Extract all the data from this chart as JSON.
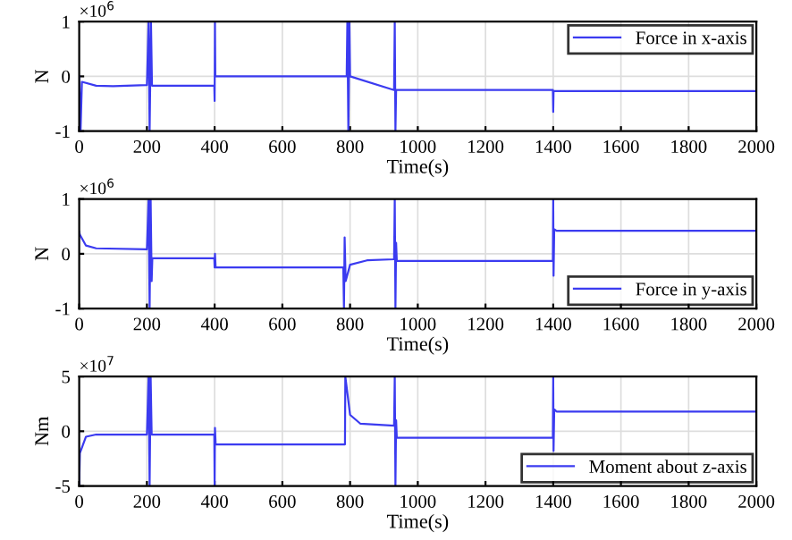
{
  "chart_data": [
    {
      "type": "line",
      "xlabel": "Time(s)",
      "ylabel": "N",
      "annotations": [
        "×10$^{6}$"
      ],
      "xlim": [
        0,
        2000
      ],
      "xticks": [
        0,
        200,
        400,
        600,
        800,
        1000,
        1200,
        1400,
        1600,
        1800,
        2000
      ],
      "ylim": [
        -1,
        1
      ],
      "yticks": [
        -1,
        0,
        1
      ],
      "grid": true,
      "legend": "top right",
      "series": [
        {
          "name": "Force in x-axis",
          "color": "#3b3bf0",
          "x": [
            0,
            4,
            8,
            50,
            100,
            200,
            205,
            208,
            212,
            215,
            399,
            400,
            401,
            402,
            790,
            792,
            795,
            798,
            800,
            930,
            932,
            934,
            936,
            1399,
            1400,
            1401,
            2000
          ],
          "values": [
            0,
            -1,
            -0.1,
            -0.17,
            -0.18,
            -0.16,
            1,
            -1,
            1,
            -0.17,
            -0.17,
            -0.45,
            1,
            0,
            0,
            1,
            -1,
            1,
            0,
            -0.25,
            1,
            -1,
            -0.25,
            -0.25,
            -0.65,
            -0.27,
            -0.27
          ]
        }
      ]
    },
    {
      "type": "line",
      "xlabel": "Time(s)",
      "ylabel": "N",
      "annotations": [
        "×10$^{6}$"
      ],
      "xlim": [
        0,
        2000
      ],
      "xticks": [
        0,
        200,
        400,
        600,
        800,
        1000,
        1200,
        1400,
        1600,
        1800,
        2000
      ],
      "ylim": [
        -1,
        1
      ],
      "yticks": [
        -1,
        0,
        1
      ],
      "grid": true,
      "legend": "bottom right",
      "series": [
        {
          "name": "Force in y-axis",
          "color": "#3b3bf0",
          "x": [
            0,
            2,
            20,
            50,
            200,
            205,
            208,
            211,
            214,
            216,
            399,
            400,
            401,
            403,
            780,
            782,
            784,
            787,
            800,
            850,
            930,
            932,
            934,
            936,
            938,
            1399,
            1400,
            1401,
            1403,
            1410,
            2000
          ],
          "values": [
            0.4,
            0.35,
            0.15,
            0.1,
            0.08,
            1,
            -1,
            1,
            -0.5,
            -0.08,
            -0.08,
            -0.25,
            0,
            -0.25,
            -0.25,
            -1,
            0.3,
            -0.5,
            -0.2,
            -0.12,
            -0.1,
            1,
            -1,
            0.2,
            -0.13,
            -0.13,
            1,
            -0.4,
            0.45,
            0.42,
            0.42
          ]
        }
      ]
    },
    {
      "type": "line",
      "xlabel": "Time(s)",
      "ylabel": "Nm",
      "annotations": [
        "×10$^{7}$"
      ],
      "xlim": [
        0,
        2000
      ],
      "xticks": [
        0,
        200,
        400,
        600,
        800,
        1000,
        1200,
        1400,
        1600,
        1800,
        2000
      ],
      "ylim": [
        -5,
        5
      ],
      "yticks": [
        -5,
        0,
        5
      ],
      "grid": true,
      "legend": "bottom right",
      "series": [
        {
          "name": "Moment about z-axis",
          "color": "#3b3bf0",
          "x": [
            0,
            2,
            20,
            50,
            200,
            205,
            208,
            211,
            214,
            399,
            400,
            401,
            403,
            785,
            786,
            800,
            830,
            930,
            932,
            934,
            936,
            938,
            1399,
            1400,
            1401,
            1403,
            1410,
            2000
          ],
          "values": [
            -5,
            -2,
            -0.5,
            -0.3,
            -0.3,
            5,
            -5,
            5,
            -0.3,
            -0.3,
            -5,
            0.3,
            -1.2,
            -1.2,
            5,
            1.5,
            0.7,
            0.5,
            5,
            -5,
            1,
            -0.6,
            -0.6,
            5,
            -1.8,
            2,
            1.8,
            1.8
          ]
        }
      ]
    }
  ]
}
